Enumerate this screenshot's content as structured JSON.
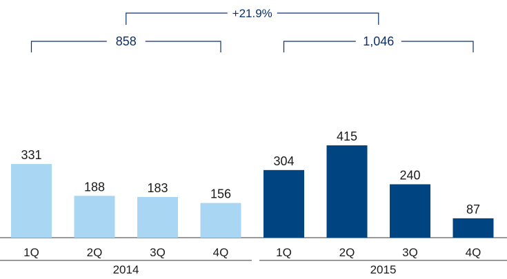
{
  "chart_data": {
    "type": "bar",
    "title": "",
    "xlabel": "",
    "ylabel": "",
    "ylim": [
      0,
      415
    ],
    "grid": false,
    "groups": [
      {
        "year": "2014",
        "total": "858",
        "color": "#a8d6f3",
        "quarters": [
          "1Q",
          "2Q",
          "3Q",
          "4Q"
        ],
        "values": [
          331,
          188,
          183,
          156
        ]
      },
      {
        "year": "2015",
        "total": "1,046",
        "color": "#004481",
        "quarters": [
          "1Q",
          "2Q",
          "3Q",
          "4Q"
        ],
        "values": [
          304,
          415,
          240,
          87
        ]
      }
    ],
    "annotation_change": "+21.9%"
  }
}
